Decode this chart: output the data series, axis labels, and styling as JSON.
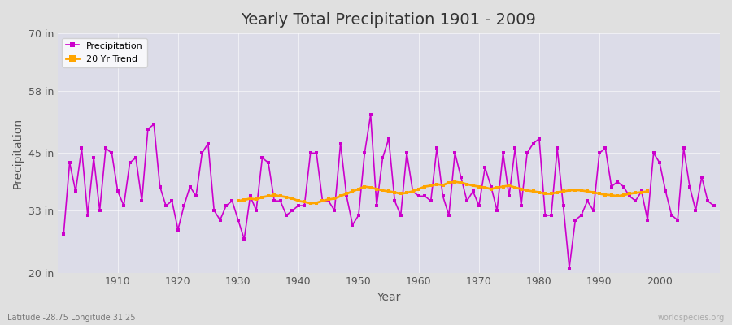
{
  "title": "Yearly Total Precipitation 1901 - 2009",
  "xlabel": "Year",
  "ylabel": "Precipitation",
  "subtitle": "Latitude -28.75 Longitude 31.25",
  "watermark": "worldspecies.org",
  "ylim": [
    20,
    70
  ],
  "yticks": [
    20,
    33,
    45,
    58,
    70
  ],
  "ytick_labels": [
    "20 in",
    "33 in",
    "45 in",
    "58 in",
    "70 in"
  ],
  "xlim": [
    1901,
    2009
  ],
  "xticks": [
    1910,
    1920,
    1930,
    1940,
    1950,
    1960,
    1970,
    1980,
    1990,
    2000
  ],
  "precip_color": "#cc00cc",
  "trend_color": "#ffa500",
  "years": [
    1901,
    1902,
    1903,
    1904,
    1905,
    1906,
    1907,
    1908,
    1909,
    1910,
    1911,
    1912,
    1913,
    1914,
    1915,
    1916,
    1917,
    1918,
    1919,
    1920,
    1921,
    1922,
    1923,
    1924,
    1925,
    1926,
    1927,
    1928,
    1929,
    1930,
    1931,
    1932,
    1933,
    1934,
    1935,
    1936,
    1937,
    1938,
    1939,
    1940,
    1941,
    1942,
    1943,
    1944,
    1945,
    1946,
    1947,
    1948,
    1949,
    1950,
    1951,
    1952,
    1953,
    1954,
    1955,
    1956,
    1957,
    1958,
    1959,
    1960,
    1961,
    1962,
    1963,
    1964,
    1965,
    1966,
    1967,
    1968,
    1969,
    1970,
    1971,
    1972,
    1973,
    1974,
    1975,
    1976,
    1977,
    1978,
    1979,
    1980,
    1981,
    1982,
    1983,
    1984,
    1985,
    1986,
    1987,
    1988,
    1989,
    1990,
    1991,
    1992,
    1993,
    1994,
    1995,
    1996,
    1997,
    1998,
    1999,
    2000,
    2001,
    2002,
    2003,
    2004,
    2005,
    2006,
    2007,
    2008,
    2009
  ],
  "precip": [
    28,
    43,
    37,
    46,
    32,
    44,
    33,
    46,
    45,
    37,
    34,
    43,
    44,
    35,
    50,
    51,
    38,
    34,
    35,
    29,
    34,
    38,
    36,
    45,
    47,
    33,
    31,
    34,
    35,
    31,
    27,
    36,
    33,
    44,
    43,
    35,
    35,
    32,
    33,
    34,
    34,
    45,
    45,
    35,
    35,
    33,
    47,
    36,
    30,
    32,
    45,
    53,
    34,
    44,
    48,
    35,
    32,
    45,
    37,
    36,
    36,
    35,
    46,
    36,
    32,
    45,
    40,
    35,
    37,
    34,
    42,
    38,
    33,
    45,
    36,
    46,
    34,
    45,
    47,
    48,
    32,
    32,
    46,
    34,
    21,
    31,
    32,
    35,
    33,
    45,
    46,
    38,
    39,
    38,
    36,
    35,
    37,
    31,
    45,
    43,
    37,
    32,
    31,
    46,
    38,
    33,
    40,
    35,
    34
  ],
  "trend_years": [
    1930,
    1931,
    1932,
    1933,
    1934,
    1935,
    1936,
    1937,
    1938,
    1939,
    1940,
    1941,
    1942,
    1943,
    1944,
    1945,
    1946,
    1947,
    1948,
    1949,
    1950,
    1951,
    1952,
    1953,
    1954,
    1955,
    1956,
    1957,
    1958,
    1959,
    1960,
    1961,
    1962,
    1963,
    1964,
    1965,
    1966,
    1967,
    1968,
    1969,
    1970,
    1971,
    1972,
    1973,
    1974,
    1975,
    1976,
    1977,
    1978,
    1979,
    1980,
    1981,
    1982,
    1983,
    1984,
    1985,
    1986,
    1987,
    1988,
    1989,
    1990,
    1991,
    1992,
    1993,
    1994,
    1995,
    1996,
    1997,
    1998
  ],
  "trend": [
    35.0,
    35.2,
    35.5,
    35.3,
    35.8,
    36.0,
    36.2,
    36.0,
    35.8,
    35.5,
    35.0,
    34.8,
    34.5,
    34.6,
    35.0,
    35.3,
    35.5,
    36.0,
    36.5,
    37.0,
    37.5,
    38.0,
    37.8,
    37.5,
    37.2,
    37.0,
    36.8,
    36.5,
    36.7,
    37.0,
    37.5,
    38.0,
    38.2,
    38.5,
    38.3,
    38.8,
    39.0,
    38.8,
    38.5,
    38.2,
    38.0,
    37.8,
    37.5,
    37.8,
    38.0,
    38.2,
    37.8,
    37.5,
    37.2,
    37.0,
    36.8,
    36.5,
    36.5,
    36.8,
    37.0,
    37.2,
    37.3,
    37.2,
    37.0,
    36.8,
    36.5,
    36.3,
    36.2,
    36.0,
    36.2,
    36.5,
    36.7,
    36.8,
    37.0
  ]
}
